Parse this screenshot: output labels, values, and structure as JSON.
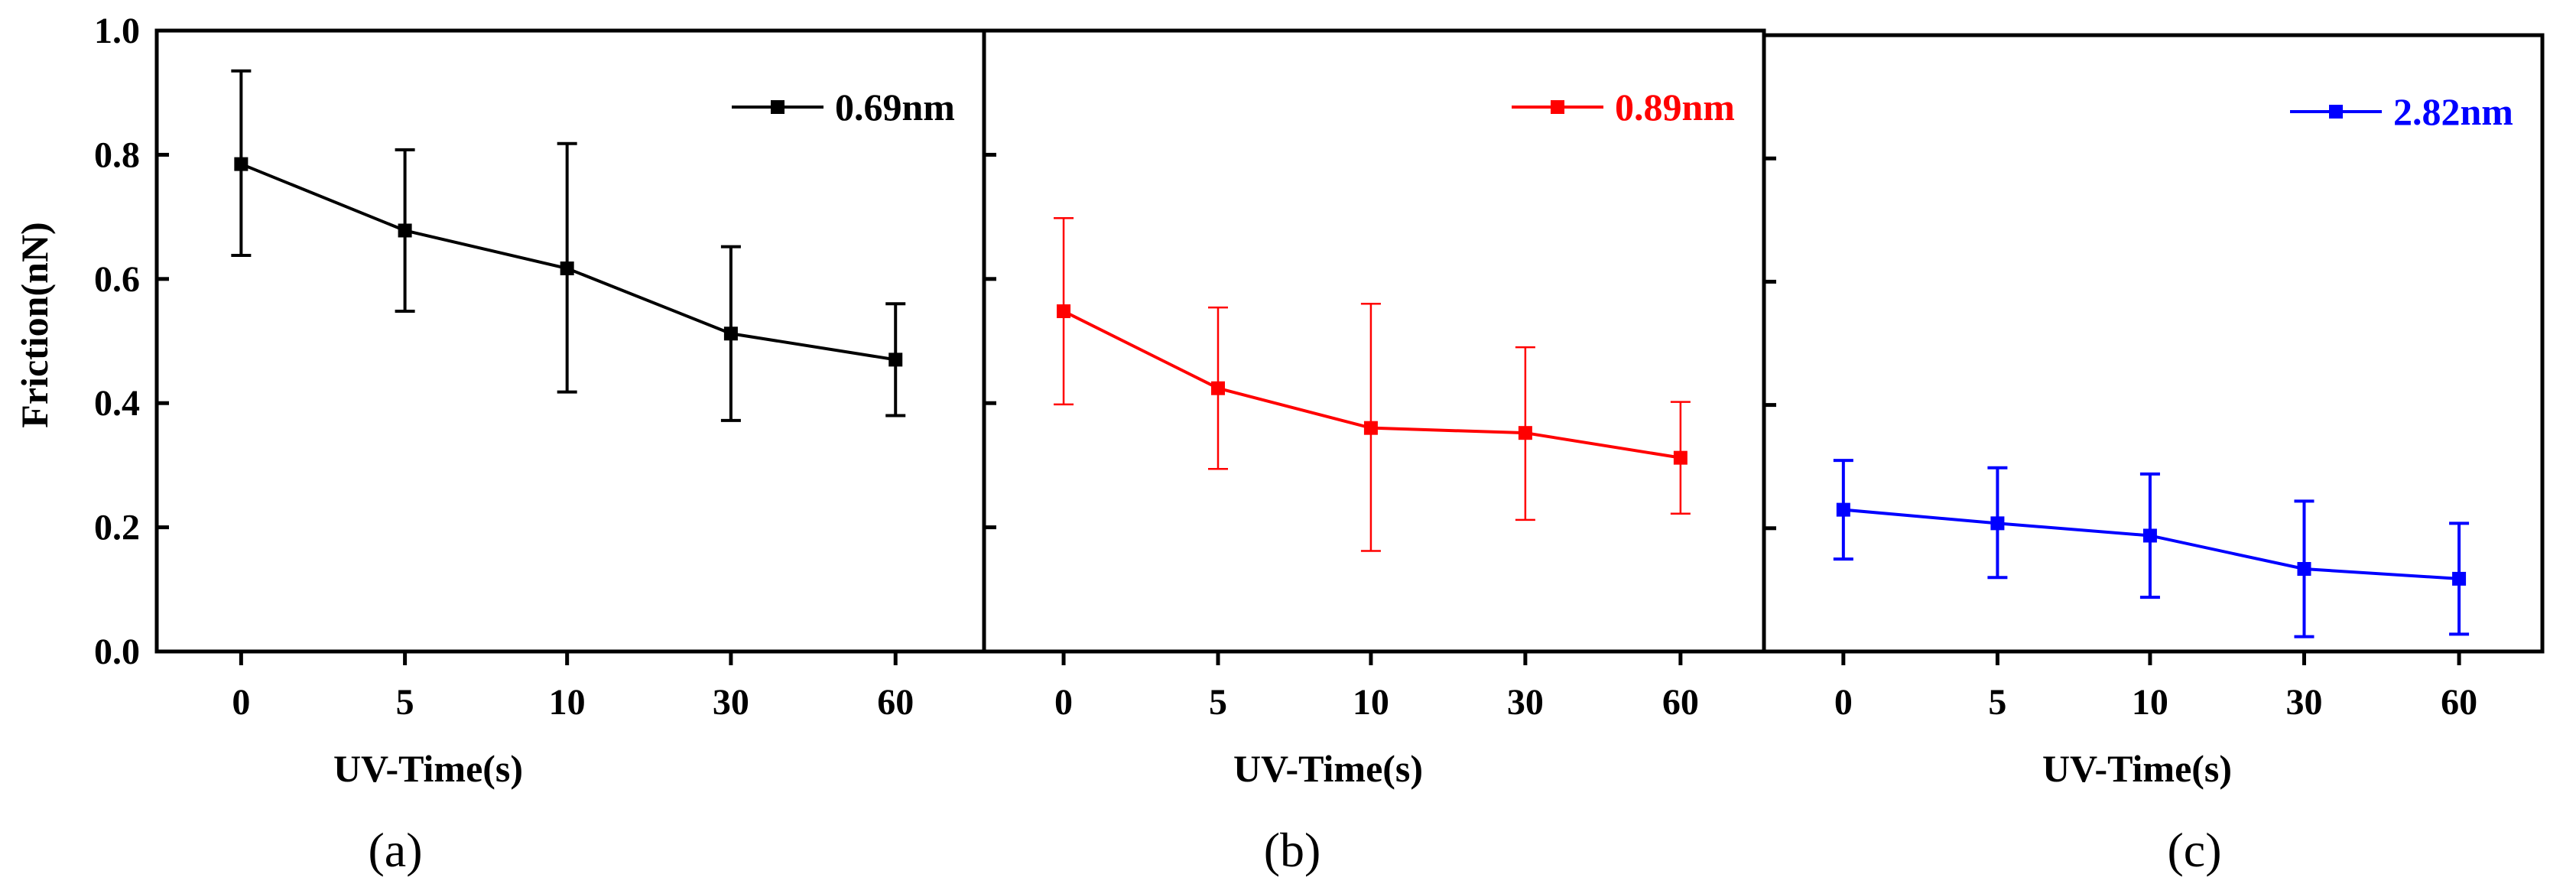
{
  "figure": {
    "y_axis_title": "Friction(nN)"
  },
  "chart_data": [
    {
      "type": "line",
      "panel": "(a)",
      "caption": "(a)",
      "xlabel": "UV-Time(s)",
      "ylabel": "Friction(nN)",
      "categories": [
        "0",
        "5",
        "10",
        "30",
        "60"
      ],
      "ylim": [
        0.0,
        1.0
      ],
      "yticks": [
        "0.0",
        "0.2",
        "0.4",
        "0.6",
        "0.8",
        "1.0"
      ],
      "legend_position": "top-right",
      "color": "#000000",
      "series": [
        {
          "name": "0.69nm",
          "values": [
            0.785,
            0.678,
            0.617,
            0.512,
            0.47
          ],
          "error_low": [
            0.638,
            0.548,
            0.418,
            0.372,
            0.38
          ],
          "error_high": [
            0.935,
            0.808,
            0.818,
            0.652,
            0.56
          ]
        }
      ]
    },
    {
      "type": "line",
      "panel": "(b)",
      "caption": "(b)",
      "xlabel": "UV-Time(s)",
      "ylabel": "",
      "categories": [
        "0",
        "5",
        "10",
        "30",
        "60"
      ],
      "ylim": [
        0.0,
        1.0
      ],
      "yticks": [],
      "legend_position": "top-right",
      "color": "#ff0000",
      "series": [
        {
          "name": "0.89nm",
          "values": [
            0.548,
            0.424,
            0.36,
            0.352,
            0.312
          ],
          "error_low": [
            0.398,
            0.294,
            0.162,
            0.212,
            0.222
          ],
          "error_high": [
            0.698,
            0.554,
            0.56,
            0.49,
            0.402
          ]
        }
      ]
    },
    {
      "type": "line",
      "panel": "(c)",
      "caption": "(c)",
      "xlabel": "UV-Time(s)",
      "ylabel": "",
      "categories": [
        "0",
        "5",
        "10",
        "30",
        "60"
      ],
      "ylim": [
        0.0,
        1.0
      ],
      "yticks": [],
      "legend_position": "top-right",
      "color": "#0000ff",
      "series": [
        {
          "name": "2.82nm",
          "values": [
            0.23,
            0.208,
            0.188,
            0.134,
            0.118
          ],
          "error_low": [
            0.15,
            0.12,
            0.088,
            0.024,
            0.028
          ],
          "error_high": [
            0.31,
            0.298,
            0.288,
            0.244,
            0.208
          ]
        }
      ]
    }
  ]
}
